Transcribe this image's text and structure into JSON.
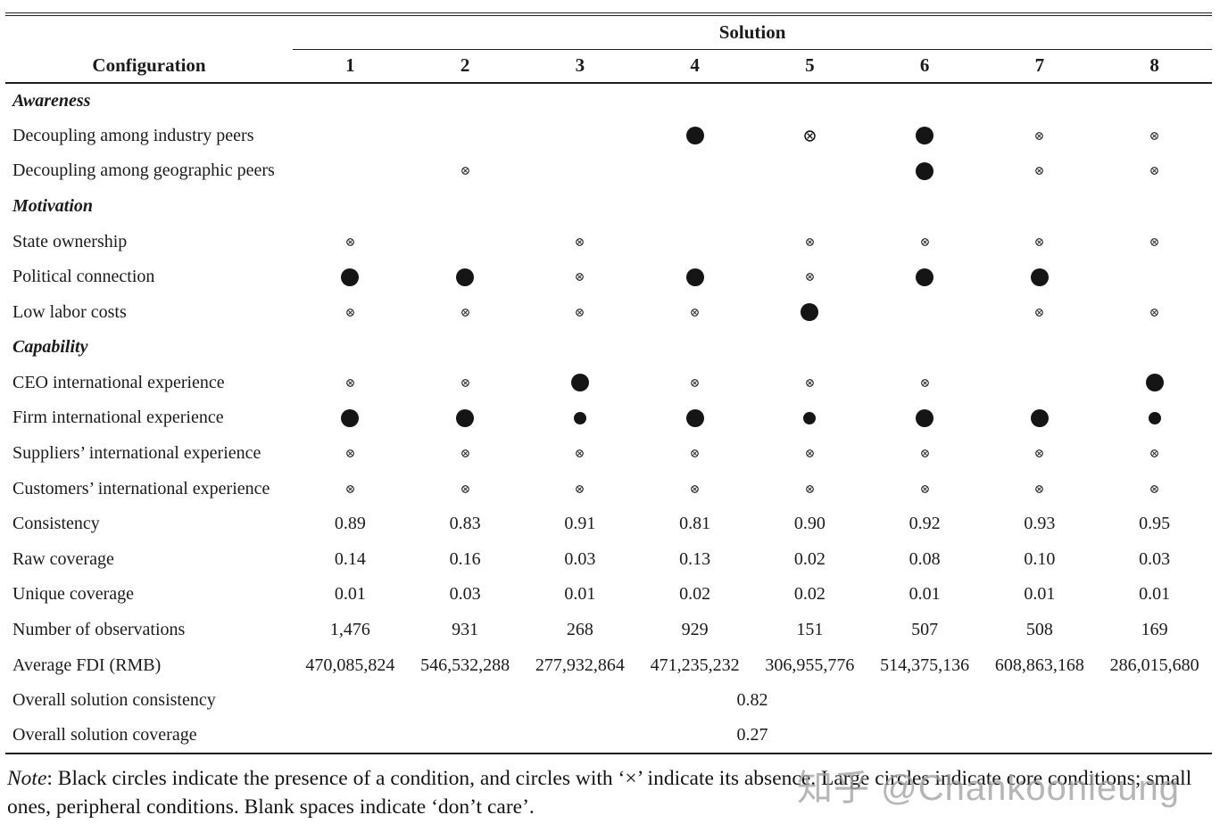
{
  "header": {
    "solution_label": "Solution",
    "config_label": "Configuration",
    "columns": [
      "1",
      "2",
      "3",
      "4",
      "5",
      "6",
      "7",
      "8"
    ]
  },
  "table": {
    "rows": [
      {
        "type": "section",
        "label": "Awareness"
      },
      {
        "type": "symbols",
        "label": "Decoupling among industry peers",
        "cells": [
          "",
          "",
          "",
          "present-core",
          "absent-core",
          "present-core",
          "absent-peripheral",
          "absent-peripheral"
        ]
      },
      {
        "type": "symbols",
        "label": "Decoupling among geographic peers",
        "cells": [
          "",
          "absent-peripheral",
          "",
          "",
          "",
          "present-core",
          "absent-peripheral",
          "absent-peripheral"
        ]
      },
      {
        "type": "section",
        "label": "Motivation"
      },
      {
        "type": "symbols",
        "label": "State ownership",
        "cells": [
          "absent-peripheral",
          "",
          "absent-peripheral",
          "",
          "absent-peripheral",
          "absent-peripheral",
          "absent-peripheral",
          "absent-peripheral"
        ]
      },
      {
        "type": "symbols",
        "label": "Political connection",
        "cells": [
          "present-core",
          "present-core",
          "absent-peripheral",
          "present-core",
          "absent-peripheral",
          "present-core",
          "present-core",
          ""
        ]
      },
      {
        "type": "symbols",
        "label": "Low labor costs",
        "cells": [
          "absent-peripheral",
          "absent-peripheral",
          "absent-peripheral",
          "absent-peripheral",
          "present-core",
          "",
          "absent-peripheral",
          "absent-peripheral"
        ]
      },
      {
        "type": "section",
        "label": "Capability"
      },
      {
        "type": "symbols",
        "label": "CEO international experience",
        "cells": [
          "absent-peripheral",
          "absent-peripheral",
          "present-core",
          "absent-peripheral",
          "absent-peripheral",
          "absent-peripheral",
          "",
          "present-core"
        ]
      },
      {
        "type": "symbols",
        "label": "Firm international experience",
        "cells": [
          "present-core",
          "present-core",
          "present-peripheral",
          "present-core",
          "present-peripheral",
          "present-core",
          "present-core",
          "present-peripheral"
        ]
      },
      {
        "type": "symbols",
        "label": "Suppliers’ international experience",
        "cells": [
          "absent-peripheral",
          "absent-peripheral",
          "absent-peripheral",
          "absent-peripheral",
          "absent-peripheral",
          "absent-peripheral",
          "absent-peripheral",
          "absent-peripheral"
        ]
      },
      {
        "type": "symbols",
        "label": "Customers’ international experience",
        "cells": [
          "absent-peripheral",
          "absent-peripheral",
          "absent-peripheral",
          "absent-peripheral",
          "absent-peripheral",
          "absent-peripheral",
          "absent-peripheral",
          "absent-peripheral"
        ]
      },
      {
        "type": "values",
        "label": "Consistency",
        "cells": [
          "0.89",
          "0.83",
          "0.91",
          "0.81",
          "0.90",
          "0.92",
          "0.93",
          "0.95"
        ]
      },
      {
        "type": "values",
        "label": "Raw coverage",
        "cells": [
          "0.14",
          "0.16",
          "0.03",
          "0.13",
          "0.02",
          "0.08",
          "0.10",
          "0.03"
        ]
      },
      {
        "type": "values",
        "label": "Unique coverage",
        "cells": [
          "0.01",
          "0.03",
          "0.01",
          "0.02",
          "0.02",
          "0.01",
          "0.01",
          "0.01"
        ]
      },
      {
        "type": "values",
        "label": "Number of observations",
        "cells": [
          "1,476",
          "931",
          "268",
          "929",
          "151",
          "507",
          "508",
          "169"
        ]
      },
      {
        "type": "values",
        "label": "Average FDI (RMB)",
        "cells": [
          "470,085,824",
          "546,532,288",
          "277,932,864",
          "471,235,232",
          "306,955,776",
          "514,375,136",
          "608,863,168",
          "286,015,680"
        ]
      },
      {
        "type": "span",
        "label": "Overall solution consistency",
        "value": "0.82"
      },
      {
        "type": "span",
        "label": "Overall solution coverage",
        "value": "0.27"
      }
    ]
  },
  "note": {
    "prefix": "Note",
    "body": ": Black circles indicate the presence of a condition, and circles with ‘×’ indicate its absence. Large circles indicate core conditions; small ones, peripheral conditions. Blank spaces indicate ‘don’t care’."
  },
  "watermark": "知乎 @Chankoonleung",
  "colors": {
    "text": "#1b1b1b",
    "rule": "#1e1e1e",
    "symbol": "#151515",
    "watermark": "#9e9e9e",
    "background": "#ffffff"
  }
}
